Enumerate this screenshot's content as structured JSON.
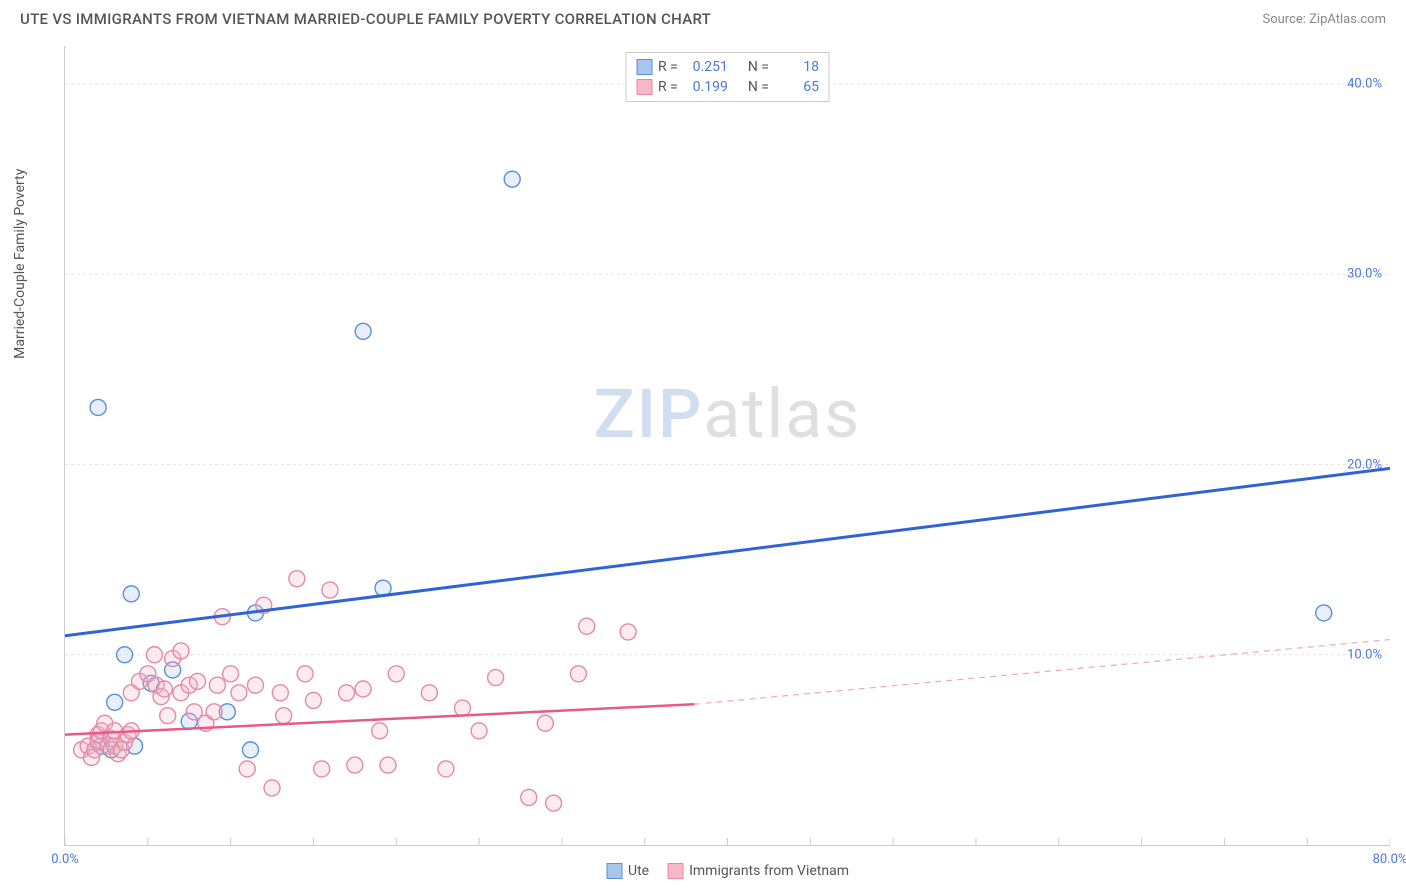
{
  "header": {
    "title": "UTE VS IMMIGRANTS FROM VIETNAM MARRIED-COUPLE FAMILY POVERTY CORRELATION CHART",
    "source": "Source: ZipAtlas.com"
  },
  "chart": {
    "type": "scatter",
    "ylabel": "Married-Couple Family Poverty",
    "watermark": {
      "part1": "ZIP",
      "part2": "atlas"
    },
    "background_color": "#ffffff",
    "grid_color": "#e4e4e4",
    "axis_color": "#cccccc",
    "tick_label_color": "#4a78d6",
    "xlim": [
      0,
      80
    ],
    "ylim": [
      0,
      42
    ],
    "xticks": [
      {
        "v": 0,
        "label": "0.0%"
      },
      {
        "v": 80,
        "label": "80.0%"
      }
    ],
    "x_minor_ticks": [
      0,
      5,
      10,
      15,
      20,
      25,
      30,
      35,
      40,
      45,
      50,
      55,
      60,
      65,
      70,
      75,
      80
    ],
    "yticks": [
      {
        "v": 10,
        "label": "10.0%"
      },
      {
        "v": 20,
        "label": "20.0%"
      },
      {
        "v": 30,
        "label": "30.0%"
      },
      {
        "v": 40,
        "label": "40.0%"
      }
    ],
    "marker_radius": 8,
    "marker_stroke_width": 1.4,
    "marker_fill_opacity": 0.28,
    "series": [
      {
        "id": "ute",
        "label": "Ute",
        "stroke": "#5b8fd6",
        "fill": "#a8c5ec",
        "trend_color": "#2f63d6",
        "trend_width": 3,
        "R": "0.251",
        "N": "18",
        "trend": {
          "x1": 0,
          "y1": 11.0,
          "x2": 80,
          "y2": 19.8
        },
        "points": [
          [
            2.0,
            23.0
          ],
          [
            4.0,
            13.2
          ],
          [
            3.6,
            10.0
          ],
          [
            5.2,
            8.5
          ],
          [
            3.0,
            7.5
          ],
          [
            2.2,
            5.2
          ],
          [
            4.2,
            5.2
          ],
          [
            2.8,
            5.0
          ],
          [
            2.0,
            5.5
          ],
          [
            9.8,
            7.0
          ],
          [
            11.2,
            5.0
          ],
          [
            11.5,
            12.2
          ],
          [
            18.0,
            27.0
          ],
          [
            19.2,
            13.5
          ],
          [
            27.0,
            35.0
          ],
          [
            6.5,
            9.2
          ],
          [
            7.5,
            6.5
          ],
          [
            76.0,
            12.2
          ]
        ]
      },
      {
        "id": "vietnam",
        "label": "Immigrants from Vietnam",
        "stroke": "#e68aa4",
        "fill": "#f6b8c8",
        "trend_color": "#e65a8a",
        "trend_width": 2.5,
        "R": "0.199",
        "N": "65",
        "trend": {
          "x1": 0,
          "y1": 5.8,
          "x2": 38,
          "y2": 7.4
        },
        "trend_dash": {
          "x1": 38,
          "y1": 7.4,
          "x2": 80,
          "y2": 10.8
        },
        "points": [
          [
            1.0,
            5.0
          ],
          [
            1.4,
            5.2
          ],
          [
            1.6,
            4.6
          ],
          [
            1.8,
            5.0
          ],
          [
            2.0,
            5.4
          ],
          [
            2.0,
            5.8
          ],
          [
            2.2,
            6.0
          ],
          [
            2.4,
            6.4
          ],
          [
            2.6,
            5.2
          ],
          [
            2.8,
            5.6
          ],
          [
            3.0,
            6.0
          ],
          [
            3.0,
            5.2
          ],
          [
            3.2,
            4.8
          ],
          [
            3.4,
            5.0
          ],
          [
            3.6,
            5.4
          ],
          [
            3.8,
            5.8
          ],
          [
            4.0,
            6.0
          ],
          [
            4.0,
            8.0
          ],
          [
            4.5,
            8.6
          ],
          [
            5.0,
            9.0
          ],
          [
            5.4,
            10.0
          ],
          [
            5.5,
            8.4
          ],
          [
            5.8,
            7.8
          ],
          [
            6.0,
            8.2
          ],
          [
            6.2,
            6.8
          ],
          [
            6.5,
            9.8
          ],
          [
            7.0,
            10.2
          ],
          [
            7.0,
            8.0
          ],
          [
            7.5,
            8.4
          ],
          [
            7.8,
            7.0
          ],
          [
            8.0,
            8.6
          ],
          [
            8.5,
            6.4
          ],
          [
            9.0,
            7.0
          ],
          [
            9.2,
            8.4
          ],
          [
            9.5,
            12.0
          ],
          [
            10.0,
            9.0
          ],
          [
            10.5,
            8.0
          ],
          [
            11.0,
            4.0
          ],
          [
            11.5,
            8.4
          ],
          [
            12.0,
            12.6
          ],
          [
            12.5,
            3.0
          ],
          [
            13.0,
            8.0
          ],
          [
            13.2,
            6.8
          ],
          [
            14.0,
            14.0
          ],
          [
            14.5,
            9.0
          ],
          [
            15.0,
            7.6
          ],
          [
            15.5,
            4.0
          ],
          [
            16.0,
            13.4
          ],
          [
            17.0,
            8.0
          ],
          [
            17.5,
            4.2
          ],
          [
            18.0,
            8.2
          ],
          [
            19.0,
            6.0
          ],
          [
            19.5,
            4.2
          ],
          [
            20.0,
            9.0
          ],
          [
            22.0,
            8.0
          ],
          [
            23.0,
            4.0
          ],
          [
            24.0,
            7.2
          ],
          [
            25.0,
            6.0
          ],
          [
            26.0,
            8.8
          ],
          [
            28.0,
            2.5
          ],
          [
            29.0,
            6.4
          ],
          [
            29.5,
            2.2
          ],
          [
            31.0,
            9.0
          ],
          [
            31.5,
            11.5
          ],
          [
            34.0,
            11.2
          ]
        ]
      }
    ],
    "legend_top": {
      "rows": [
        {
          "swatch_fill": "#a8c5ec",
          "swatch_border": "#5b8fd6",
          "R_label": "R =",
          "R": "0.251",
          "N_label": "N =",
          "N": "18"
        },
        {
          "swatch_fill": "#f6b8c8",
          "swatch_border": "#e68aa4",
          "R_label": "R =",
          "R": "0.199",
          "N_label": "N =",
          "N": "65"
        }
      ]
    },
    "legend_bottom": {
      "items": [
        {
          "swatch_fill": "#a8c5ec",
          "swatch_border": "#5b8fd6",
          "label": "Ute"
        },
        {
          "swatch_fill": "#f6b8c8",
          "swatch_border": "#e68aa4",
          "label": "Immigrants from Vietnam"
        }
      ]
    }
  }
}
